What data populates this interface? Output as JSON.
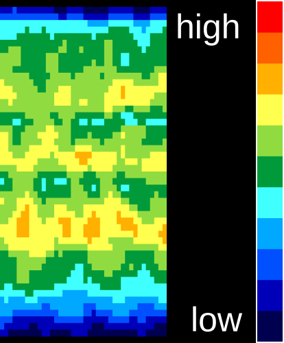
{
  "chart_data": {
    "type": "heatmap",
    "title": "",
    "xlabel": "",
    "ylabel": "",
    "colorbar": {
      "high_label": "high",
      "low_label": "low",
      "levels": 10,
      "colors": [
        "#000050",
        "#0000b8",
        "#0050ff",
        "#00a8ff",
        "#40ffff",
        "#009a3a",
        "#90dc40",
        "#ffff50",
        "#ffb000",
        "#ff6000",
        "#ff0000"
      ]
    },
    "value_range": [
      0,
      10
    ],
    "grid": false,
    "legend": "right",
    "row_level_profile": [
      1.1,
      2.2,
      4.2,
      4.6,
      5.1,
      5.4,
      5.6,
      5.7,
      5.8,
      6.0,
      6.3,
      6.7,
      6.9,
      7.0,
      6.8,
      6.2,
      5.6,
      5.4,
      6.3,
      6.7,
      6.6,
      6.9,
      7.3,
      7.3,
      6.9,
      6.1,
      5.7,
      5.8,
      6.2,
      6.7,
      7.0,
      7.4,
      7.7,
      7.8,
      7.6,
      7.3,
      6.9,
      6.4,
      6.1,
      5.9,
      5.5,
      5.3,
      4.9,
      4.5,
      3.7,
      3.3,
      2.7,
      1.9,
      1.3,
      0.7
    ]
  }
}
